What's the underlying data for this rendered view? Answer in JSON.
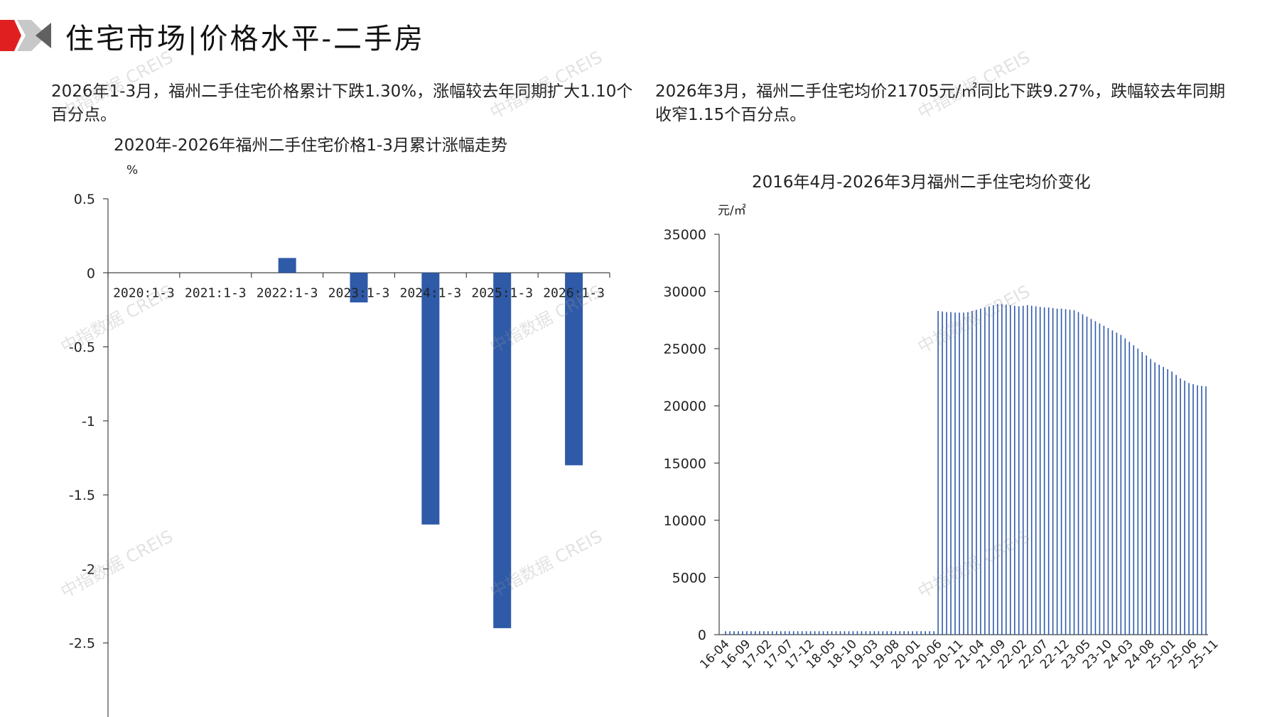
{
  "page": {
    "title": "住宅市场|价格水平-二手房",
    "brand_color": "#e02020",
    "watermark": "中指数据 CREIS"
  },
  "left": {
    "description": "2026年1-3月，福州二手住宅价格累计下跌1.30%，涨幅较去年同期扩大1.10个百分点。",
    "chart_title": "2020年-2026年福州二手住宅价格1-3月累计涨幅走势",
    "unit": "%"
  },
  "right": {
    "description": "2026年3月，福州二手住宅均价21705元/㎡同比下跌9.27%，跌幅较去年同期收窄1.15个百分点。",
    "chart_title": "2016年4月-2026年3月福州二手住宅均价变化",
    "unit": "元/㎡"
  },
  "chart_data": [
    {
      "type": "bar",
      "title": "2020年-2026年福州二手住宅价格1-3月累计涨幅走势",
      "ylabel": "%",
      "ylim": [
        -3.0,
        0.5
      ],
      "yticks": [
        0.5,
        0,
        -0.5,
        -1,
        -1.5,
        -2,
        -2.5
      ],
      "ytick_labels": [
        "0.5",
        "0",
        "-0.5",
        "-1",
        "-1.5",
        "-2",
        "-2.5"
      ],
      "categories": [
        "2020:1-3",
        "2021:1-3",
        "2022:1-3",
        "2023:1-3",
        "2024:1-3",
        "2025:1-3",
        "2026:1-3"
      ],
      "values": [
        0,
        0,
        0.1,
        -0.2,
        -1.7,
        -2.4,
        -1.3
      ],
      "color": "#2e5aa8"
    },
    {
      "type": "bar",
      "title": "2016年4月-2026年3月福州二手住宅均价变化",
      "ylabel": "元/㎡",
      "ylim": [
        0,
        35000
      ],
      "yticks": [
        35000,
        30000,
        25000,
        20000,
        15000,
        10000,
        5000,
        0
      ],
      "ytick_labels": [
        "35000",
        "30000",
        "25000",
        "20000",
        "15000",
        "10000",
        "5000",
        "0"
      ],
      "x_start": "16-04",
      "x_labels": [
        "16-04",
        "16-09",
        "17-02",
        "17-07",
        "17-12",
        "18-05",
        "18-10",
        "19-03",
        "19-08",
        "20-01",
        "20-06",
        "20-11",
        "21-04",
        "21-09",
        "22-02",
        "22-07",
        "22-12",
        "23-05",
        "23-10",
        "24-03",
        "24-08",
        "25-01",
        "25-06",
        "25-11"
      ],
      "values": [
        300,
        300,
        300,
        300,
        300,
        300,
        300,
        300,
        300,
        300,
        300,
        300,
        300,
        300,
        300,
        300,
        300,
        300,
        300,
        300,
        300,
        300,
        300,
        300,
        300,
        300,
        300,
        300,
        300,
        300,
        300,
        300,
        300,
        300,
        300,
        300,
        300,
        300,
        300,
        300,
        300,
        300,
        300,
        300,
        300,
        300,
        300,
        300,
        300,
        300,
        28300,
        28250,
        28200,
        28200,
        28150,
        28150,
        28150,
        28200,
        28300,
        28400,
        28500,
        28600,
        28700,
        28800,
        28900,
        28900,
        28850,
        28800,
        28750,
        28700,
        28750,
        28800,
        28750,
        28700,
        28650,
        28600,
        28600,
        28550,
        28500,
        28500,
        28450,
        28400,
        28350,
        28200,
        28000,
        27800,
        27600,
        27400,
        27200,
        27000,
        26800,
        26600,
        26400,
        26200,
        25900,
        25600,
        25300,
        25000,
        24700,
        24400,
        24100,
        23800,
        23600,
        23400,
        23200,
        23000,
        22700,
        22400,
        22200,
        22000,
        21900,
        21800,
        21750,
        21705
      ],
      "color": "#2e5aa8"
    }
  ]
}
